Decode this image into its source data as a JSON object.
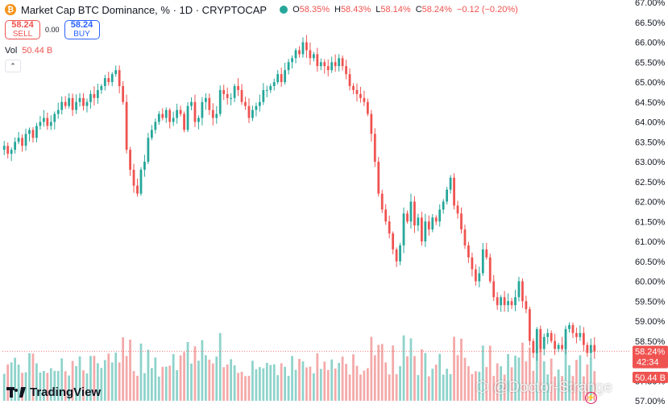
{
  "header": {
    "coin_glyph": "₿",
    "title": "Market Cap BTC Dominance, % · 1D · CRYPTOCAP",
    "open_label": "O",
    "open_value": "58.35%",
    "high_label": "H",
    "high_value": "58.43%",
    "low_label": "L",
    "low_value": "58.14%",
    "close_label": "C",
    "close_value": "58.24%",
    "change": "−0.12 (−0.20%)"
  },
  "trade": {
    "sell_price": "58.24",
    "sell_label": "SELL",
    "spread": "0.00",
    "buy_price": "58.24",
    "buy_label": "BUY"
  },
  "volume_legend": {
    "label": "Vol",
    "value": "50.44 B"
  },
  "price_badge": {
    "value": "58.24%",
    "countdown": "42:34"
  },
  "volume_badge": {
    "value": "50.44 B"
  },
  "logo": {
    "text": "TradingView"
  },
  "watermark": {
    "text": "⬡ @Doctor-Strange"
  },
  "colors": {
    "up": "#26a69a",
    "down": "#ef5350",
    "vol_up": "#8ed3cb",
    "vol_down": "#f4a9a9"
  },
  "chart_data": {
    "type": "candlestick",
    "y_axis_unit": "%",
    "ylim": [
      57.0,
      67.0
    ],
    "y_ticks": [
      "67.00%",
      "66.50%",
      "66.00%",
      "65.50%",
      "65.00%",
      "64.50%",
      "64.00%",
      "63.50%",
      "63.00%",
      "62.50%",
      "62.00%",
      "61.50%",
      "61.00%",
      "60.50%",
      "60.00%",
      "59.50%",
      "59.00%",
      "58.50%",
      "58.00%",
      "57.50%",
      "57.00%"
    ],
    "close_series": [
      63.4,
      63.2,
      63.3,
      63.5,
      63.6,
      63.4,
      63.7,
      63.8,
      63.6,
      63.9,
      64.0,
      64.1,
      63.9,
      64.0,
      64.2,
      64.3,
      64.5,
      64.4,
      64.6,
      64.3,
      64.5,
      64.6,
      64.4,
      64.5,
      64.7,
      64.6,
      64.8,
      64.9,
      65.1,
      65.0,
      65.2,
      65.3,
      64.9,
      64.5,
      63.3,
      62.8,
      62.4,
      62.2,
      62.8,
      63.0,
      63.6,
      63.8,
      64.0,
      64.2,
      64.1,
      64.3,
      64.0,
      64.1,
      64.3,
      64.2,
      63.8,
      64.4,
      64.5,
      64.0,
      64.1,
      64.5,
      64.6,
      64.3,
      64.1,
      64.2,
      64.8,
      64.7,
      64.6,
      64.6,
      64.9,
      64.8,
      64.5,
      64.4,
      64.1,
      64.3,
      64.4,
      64.5,
      64.8,
      64.8,
      64.9,
      65.0,
      65.2,
      65.0,
      65.3,
      65.5,
      65.6,
      65.8,
      65.7,
      66.0,
      65.8,
      65.6,
      65.7,
      65.4,
      65.5,
      65.4,
      65.3,
      65.5,
      65.4,
      65.6,
      65.4,
      65.2,
      64.9,
      64.8,
      64.7,
      64.6,
      64.5,
      64.2,
      63.7,
      63.0,
      62.2,
      61.8,
      61.5,
      61.2,
      60.8,
      60.5,
      60.9,
      61.7,
      61.5,
      62.0,
      61.4,
      61.6,
      61.0,
      61.5,
      61.3,
      61.6,
      61.5,
      61.8,
      62.0,
      62.3,
      62.6,
      61.9,
      61.7,
      61.3,
      60.9,
      60.6,
      60.3,
      60.0,
      60.2,
      60.8,
      60.6,
      60.0,
      59.6,
      59.4,
      59.6,
      59.4,
      59.5,
      59.4,
      59.6,
      60.0,
      59.5,
      59.3,
      58.5,
      58.2,
      58.8,
      58.3,
      58.6,
      58.7,
      58.5,
      58.3,
      58.4,
      58.3,
      58.8,
      58.9,
      58.7,
      58.6,
      58.7,
      58.4,
      58.2,
      58.4,
      58.24
    ],
    "volume_scale_note": "",
    "last_close": 58.24,
    "last_volume": "50.44 B"
  }
}
